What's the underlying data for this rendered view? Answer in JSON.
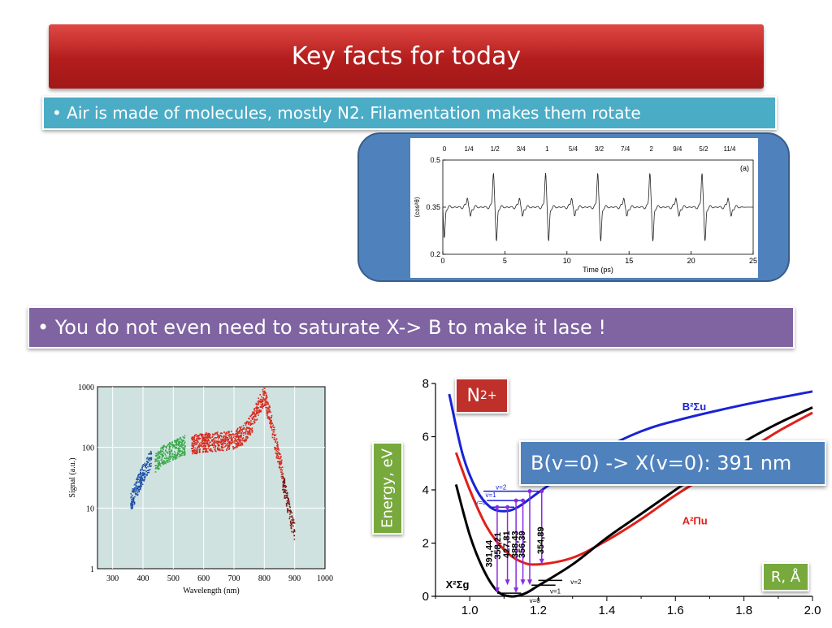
{
  "slide": {
    "title": "Key facts for today",
    "bullet1": "• Air is made of molecules, mostly N2.  Filamentation makes them rotate",
    "bullet2": "• You do not even need to saturate X-> B to make it lase !",
    "n2_label_base": "N",
    "n2_label_sub": "2",
    "n2_label_sup": "+",
    "energy_label": "Energy, eV",
    "transition_label": "B(v=0) -> X(v=0): 391 nm",
    "r_label": "R, Å"
  },
  "colors": {
    "title_red": "#b21d1c",
    "bullet1_teal": "#4bacc6",
    "bullet2_purple": "#8064a2",
    "frame_blue": "#4f81bd",
    "label_green": "#77a93d"
  },
  "chart_data": [
    {
      "type": "line",
      "panel_label": "(a)",
      "xlabel": "Time (ps)",
      "ylabel": "⟨cos²θ⟩",
      "xlim": [
        0,
        25
      ],
      "ylim": [
        0.2,
        0.5
      ],
      "x_ticks": [
        "0",
        "5",
        "10",
        "15",
        "20",
        "25"
      ],
      "y_ticks": [
        "0.2",
        "0.35",
        "0.5"
      ],
      "top_ticks": [
        "0",
        "1/4",
        "1/2",
        "3/4",
        "1",
        "5/4",
        "3/2",
        "7/4",
        "2",
        "9/4",
        "5/2",
        "11/4"
      ],
      "baseline": 0.35,
      "revival_times_ps": [
        0,
        2.1,
        4.2,
        6.3,
        8.4,
        10.5,
        12.6,
        14.7,
        16.8,
        18.9,
        21.0,
        23.1
      ],
      "revival_peak": [
        0.46,
        0.39,
        0.47,
        0.39,
        0.47,
        0.39,
        0.47,
        0.39,
        0.47,
        0.39,
        0.47,
        0.39
      ],
      "revival_dip": [
        0.24,
        0.31,
        0.23,
        0.31,
        0.23,
        0.31,
        0.23,
        0.31,
        0.23,
        0.31,
        0.23,
        0.31
      ]
    },
    {
      "type": "scatter",
      "xlabel": "Wavelength (nm)",
      "ylabel": "Signal (a.u.)",
      "xlim": [
        250,
        1000
      ],
      "ylim": [
        1,
        1000
      ],
      "y_scale": "log",
      "x_ticks": [
        "300",
        "400",
        "500",
        "600",
        "700",
        "800",
        "900",
        "1000"
      ],
      "y_ticks": [
        "1",
        "10",
        "100",
        "1000"
      ],
      "series": [
        {
          "color": "#1f4fa8",
          "x": [
            360,
            370,
            380,
            390,
            400,
            410,
            420,
            430
          ],
          "y": [
            12,
            16,
            22,
            28,
            36,
            45,
            55,
            65
          ]
        },
        {
          "color": "#3aa84a",
          "x": [
            440,
            460,
            480,
            500,
            520,
            540
          ],
          "y": [
            55,
            70,
            80,
            90,
            100,
            110
          ]
        },
        {
          "color": "#d82a1f",
          "x": [
            560,
            600,
            650,
            700,
            730,
            760,
            780,
            800,
            820,
            840,
            860
          ],
          "y": [
            110,
            120,
            125,
            130,
            160,
            250,
            450,
            700,
            300,
            100,
            40
          ]
        },
        {
          "color": "#7a1a14",
          "x": [
            860,
            870,
            880,
            890,
            900
          ],
          "y": [
            30,
            18,
            10,
            6,
            4
          ]
        }
      ]
    },
    {
      "type": "line",
      "xlabel": "",
      "ylabel": "",
      "xlim": [
        0.9,
        2.0
      ],
      "ylim": [
        0,
        8
      ],
      "x_ticks": [
        "1.0",
        "1.2",
        "1.4",
        "1.6",
        "1.8",
        "2.0"
      ],
      "y_ticks": [
        "0",
        "2",
        "4",
        "6",
        "8"
      ],
      "series": [
        {
          "name": "B²Σu",
          "color": "#1a22d8",
          "x": [
            0.94,
            0.98,
            1.02,
            1.06,
            1.1,
            1.14,
            1.2,
            1.3,
            1.4,
            1.5,
            1.6,
            1.8,
            2.0
          ],
          "y": [
            7.6,
            5.3,
            4.0,
            3.35,
            3.2,
            3.35,
            3.9,
            4.8,
            5.6,
            6.2,
            6.6,
            7.2,
            7.7
          ]
        },
        {
          "name": "A²Πu",
          "color": "#e0201a",
          "x": [
            0.96,
            1.0,
            1.05,
            1.1,
            1.15,
            1.2,
            1.3,
            1.4,
            1.5,
            1.6,
            1.7,
            1.8,
            1.9,
            2.0
          ],
          "y": [
            5.4,
            4.0,
            2.6,
            1.75,
            1.3,
            1.2,
            1.45,
            2.1,
            2.9,
            3.8,
            4.6,
            5.4,
            6.2,
            6.9
          ]
        },
        {
          "name": "X²Σg",
          "color": "#000000",
          "x": [
            0.96,
            1.0,
            1.04,
            1.08,
            1.12,
            1.16,
            1.2,
            1.3,
            1.4,
            1.5,
            1.6,
            1.7,
            1.8,
            1.9,
            2.0
          ],
          "y": [
            4.2,
            2.3,
            1.0,
            0.2,
            0.0,
            0.1,
            0.4,
            1.2,
            2.2,
            3.1,
            4.0,
            4.9,
            5.8,
            6.5,
            7.1
          ]
        }
      ],
      "wavelengths_nm": [
        "391,44",
        "358,21",
        "427,81",
        "388,43",
        "356,39",
        "354,89"
      ],
      "vib_labels_upper": [
        "v=0",
        "v=1",
        "v=2"
      ],
      "vib_labels_lower": [
        "v=0",
        "v=1",
        "v=2"
      ]
    }
  ]
}
